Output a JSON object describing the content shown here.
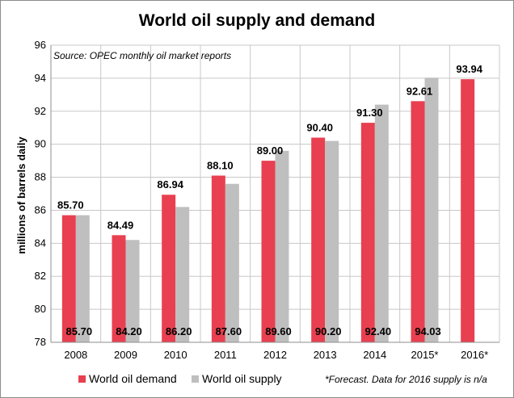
{
  "chart_data": {
    "type": "bar",
    "title": "World oil supply and demand",
    "ylabel": "millions of barrels daily",
    "ylim": [
      78,
      96
    ],
    "yticks": [
      78,
      80,
      82,
      84,
      86,
      88,
      90,
      92,
      94,
      96
    ],
    "grid": true,
    "categories": [
      "2008",
      "2009",
      "2010",
      "2011",
      "2012",
      "2013",
      "2014",
      "2015*",
      "2016*"
    ],
    "series": [
      {
        "name": "World oil demand",
        "color": "#e84050",
        "values": [
          85.7,
          84.49,
          86.94,
          88.1,
          89.0,
          90.4,
          91.3,
          92.61,
          93.94
        ],
        "labels": [
          "85.70",
          "84.49",
          "86.94",
          "88.10",
          "89.00",
          "90.40",
          "91.30",
          "92.61",
          "93.94"
        ]
      },
      {
        "name": "World oil supply",
        "color": "#bfbfbf",
        "values": [
          85.7,
          84.2,
          86.2,
          87.6,
          89.6,
          90.2,
          92.4,
          94.03,
          null
        ],
        "labels": [
          "85.70",
          "84.20",
          "86.20",
          "87.60",
          "89.60",
          "90.20",
          "92.40",
          "94.03",
          ""
        ]
      }
    ],
    "source_note": "Source:  OPEC monthly  oil market  reports",
    "footnote": "*Forecast.  Data for 2016 supply is n/a",
    "legend_position": "bottom"
  }
}
